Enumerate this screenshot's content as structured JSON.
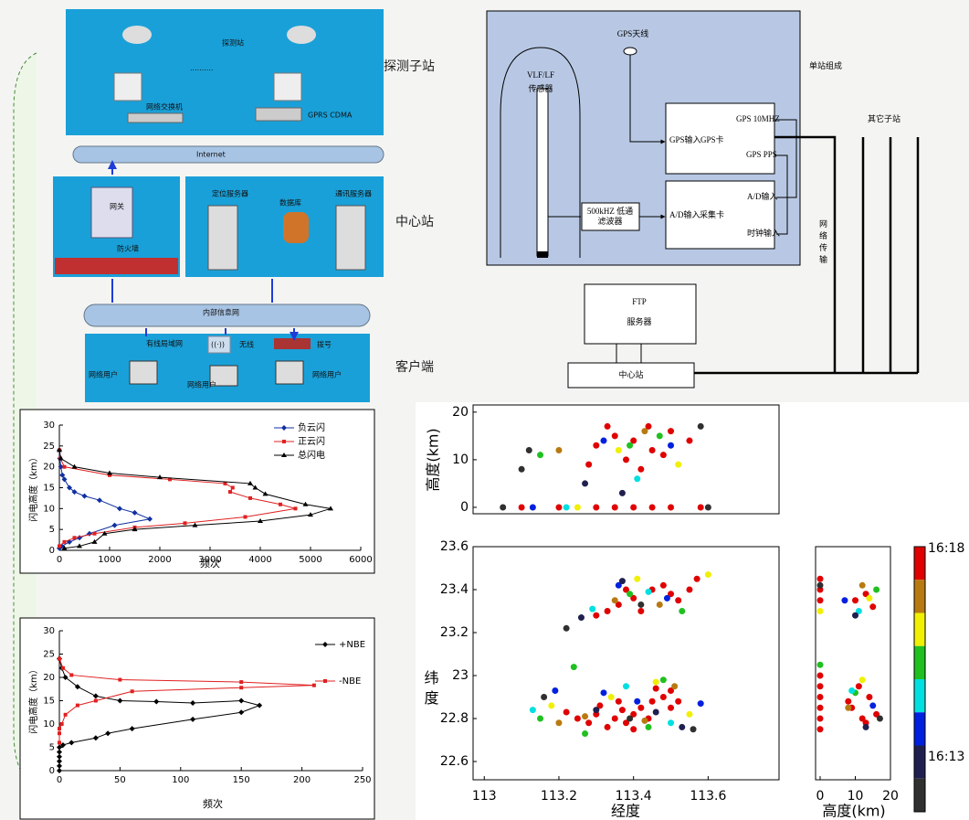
{
  "diagram": {
    "probe_station": "探测站",
    "dots": "··········",
    "switch": "网络交换机",
    "gprs": "GPRS CDMA",
    "internet": "Internet",
    "gateway": "网关",
    "firewall": "防火墙",
    "locate_server": "定位服务器",
    "database": "数据库",
    "comm_server": "通讯服务器",
    "intranet": "内部信息网",
    "wired_lan": "有线局域网",
    "wireless": "无线",
    "wifi_icon": "((·))",
    "dialup": "拨号",
    "user_1": "网络用户",
    "user_2": "网络用户",
    "user_3": "网络用户",
    "label_substation": "探测子站",
    "label_center": "中心站",
    "label_client": "客户端"
  },
  "system": {
    "sensor_1": "VLF/LF",
    "sensor_2": "传感器",
    "gps_antenna": "GPS天线",
    "gps_10mhz": "GPS 10MHZ",
    "gps_input": "GPS输入",
    "gps_card": "GPS卡",
    "gps_pps": "GPS PPS",
    "ad_input_1": "A/D输入",
    "filter_1": "500kHZ 低通",
    "filter_2": "滤波器",
    "ad_input_2": "A/D输入",
    "acq_card": "采集卡",
    "clock_input": "时钟输入",
    "single_station": "单站组成",
    "other_stations": "其它子站",
    "network": "网络传输",
    "ftp_1": "FTP",
    "ftp_2": "服务器",
    "center": "中心站"
  },
  "colorbar": {
    "colors": [
      "#e00000",
      "#b87a10",
      "#f0f000",
      "#20c020",
      "#00e0e0",
      "#0020e0",
      "#202050",
      "#303030"
    ],
    "ticks": [
      "16:18",
      "16:13"
    ]
  },
  "chart_data": [
    {
      "type": "line",
      "xlabel": "频次",
      "ylabel": "闪电高度（km）",
      "xlim": [
        0,
        6000
      ],
      "ylim": [
        0,
        30
      ],
      "xticks": [
        0,
        1000,
        2000,
        3000,
        4000,
        5000,
        6000
      ],
      "yticks": [
        0,
        5,
        10,
        15,
        20,
        25,
        30
      ],
      "series": [
        {
          "name": "负云闪",
          "color": "#1030a0",
          "marker": "diamond",
          "x": [
            0,
            10,
            30,
            60,
            100,
            200,
            300,
            500,
            800,
            1200,
            1500,
            1800,
            1100,
            600,
            400,
            200,
            50,
            0
          ],
          "y": [
            24,
            22,
            20,
            18,
            17,
            15,
            14,
            13,
            12,
            10,
            9,
            7.5,
            6,
            4,
            3,
            2,
            1,
            0.5
          ]
        },
        {
          "name": "正云闪",
          "color": "#e02020",
          "marker": "square",
          "x": [
            0,
            20,
            100,
            1000,
            2200,
            3300,
            3450,
            3400,
            3800,
            4400,
            4700,
            3700,
            2500,
            1500,
            700,
            300,
            100,
            0
          ],
          "y": [
            24,
            22,
            20,
            18,
            17,
            16,
            15,
            14,
            12.5,
            11,
            10,
            8,
            6.5,
            5.5,
            4,
            3,
            2,
            1
          ]
        },
        {
          "name": "总闪电",
          "color": "#000000",
          "marker": "triangle",
          "x": [
            0,
            30,
            300,
            1000,
            2000,
            3800,
            3900,
            4100,
            4900,
            5400,
            5000,
            4000,
            2700,
            1500,
            900,
            700,
            400,
            100
          ],
          "y": [
            24,
            22,
            20,
            18.5,
            17.5,
            16,
            15,
            13.5,
            11,
            10,
            8.5,
            7,
            6,
            5,
            4,
            2,
            1,
            0.5
          ]
        }
      ]
    },
    {
      "type": "line",
      "xlabel": "频次",
      "ylabel": "闪电高度（km）",
      "xlim": [
        0,
        250
      ],
      "ylim": [
        0,
        30
      ],
      "xticks": [
        0,
        50,
        100,
        150,
        200,
        250
      ],
      "yticks": [
        0,
        5,
        10,
        15,
        20,
        25,
        30
      ],
      "series": [
        {
          "name": "+NBE",
          "color": "#000000",
          "marker": "diamond",
          "x": [
            0,
            2,
            5,
            15,
            30,
            50,
            80,
            110,
            150,
            165,
            150,
            110,
            60,
            40,
            30,
            10,
            3,
            0,
            0,
            0,
            0,
            0,
            0
          ],
          "y": [
            24,
            22,
            20,
            18,
            16,
            15,
            14.8,
            14.5,
            15,
            14,
            12.5,
            11,
            9,
            8,
            7,
            6,
            5.5,
            5,
            4,
            3,
            2,
            1,
            0
          ]
        },
        {
          "name": "-NBE",
          "color": "#e02020",
          "marker": "square",
          "x": [
            0,
            3,
            10,
            50,
            150,
            210,
            150,
            60,
            30,
            15,
            5,
            2,
            0,
            0,
            0
          ],
          "y": [
            24,
            22,
            20.5,
            19.5,
            19,
            18.3,
            17.8,
            17,
            15,
            14,
            12,
            10,
            9,
            8,
            6
          ]
        }
      ]
    },
    {
      "type": "scatter",
      "ylabel": "高度(km)",
      "xlim": [
        112.97,
        113.79
      ],
      "ylim": [
        -1.35,
        21.5
      ],
      "yticks": [
        0,
        10,
        20
      ],
      "series": [
        {
          "color": "#e00000",
          "x": [
            113.35,
            113.4,
            113.45,
            113.3,
            113.5,
            113.38,
            113.42,
            113.48,
            113.33,
            113.55,
            113.28,
            113.44,
            113.1,
            113.2,
            113.3,
            113.4,
            113.5,
            113.58,
            113.35,
            113.45
          ],
          "y": [
            15,
            14,
            12,
            13,
            16,
            10,
            8,
            11,
            17,
            14,
            9,
            17,
            0,
            0,
            0,
            0,
            0,
            0,
            0,
            0
          ]
        },
        {
          "color": "#b87a10",
          "x": [
            113.43,
            113.2
          ],
          "y": [
            16,
            12
          ]
        },
        {
          "color": "#f0f000",
          "x": [
            113.25,
            113.36,
            113.52
          ],
          "y": [
            0,
            12,
            9
          ]
        },
        {
          "color": "#20c020",
          "x": [
            113.15,
            113.39,
            113.47
          ],
          "y": [
            11,
            13,
            15
          ]
        },
        {
          "color": "#00e0e0",
          "x": [
            113.22,
            113.41
          ],
          "y": [
            0,
            6
          ]
        },
        {
          "color": "#0020e0",
          "x": [
            113.32,
            113.5,
            113.13
          ],
          "y": [
            14,
            13,
            0
          ]
        },
        {
          "color": "#202050",
          "x": [
            113.27,
            113.37
          ],
          "y": [
            5,
            3
          ]
        },
        {
          "color": "#303030",
          "x": [
            113.12,
            113.58,
            113.05,
            113.1,
            113.6
          ],
          "y": [
            12,
            17,
            0,
            8,
            0
          ]
        }
      ]
    },
    {
      "type": "scatter",
      "xlabel": "经度",
      "ylabel": "纬度",
      "xlim": [
        112.97,
        113.79
      ],
      "ylim": [
        22.515,
        23.6
      ],
      "xticks": [
        113,
        113.2,
        113.4,
        113.6
      ],
      "yticks": [
        22.6,
        22.8,
        23,
        23.2,
        23.4,
        23.6
      ],
      "series": [
        {
          "color": "#e00000",
          "x": [
            113.45,
            113.5,
            113.52,
            113.48,
            113.4,
            113.36,
            113.33,
            113.55,
            113.42,
            113.38,
            113.3,
            113.57,
            113.3,
            113.35,
            113.38,
            113.4,
            113.42,
            113.45,
            113.48,
            113.5,
            113.33,
            113.28,
            113.25,
            113.37,
            113.44,
            113.52,
            113.22,
            113.36,
            113.46,
            113.31,
            113.4,
            113.5
          ],
          "y": [
            23.4,
            23.38,
            23.35,
            23.42,
            23.36,
            23.33,
            23.3,
            23.4,
            23.3,
            23.4,
            23.28,
            23.45,
            22.82,
            22.8,
            22.78,
            22.82,
            22.85,
            22.88,
            22.9,
            22.93,
            22.76,
            22.78,
            22.8,
            22.84,
            22.8,
            22.88,
            22.83,
            22.88,
            22.94,
            22.86,
            22.75,
            22.85
          ]
        },
        {
          "color": "#b87a10",
          "x": [
            113.35,
            113.47,
            113.27,
            113.43,
            113.51,
            113.2
          ],
          "y": [
            23.35,
            23.33,
            22.81,
            22.79,
            22.95,
            22.78
          ]
        },
        {
          "color": "#f0f000",
          "x": [
            113.41,
            113.6,
            113.46,
            113.34,
            113.55,
            113.18
          ],
          "y": [
            23.45,
            23.47,
            22.97,
            22.9,
            22.82,
            22.86
          ]
        },
        {
          "color": "#20c020",
          "x": [
            113.39,
            113.53,
            113.27,
            113.48,
            113.15,
            113.24,
            113.44
          ],
          "y": [
            23.38,
            23.3,
            22.73,
            22.98,
            22.8,
            23.04,
            22.76
          ]
        },
        {
          "color": "#00e0e0",
          "x": [
            113.44,
            113.29,
            113.38,
            113.5,
            113.13
          ],
          "y": [
            23.39,
            23.31,
            22.95,
            22.78,
            22.84
          ]
        },
        {
          "color": "#0020e0",
          "x": [
            113.36,
            113.49,
            113.32,
            113.41,
            113.19,
            113.58
          ],
          "y": [
            23.42,
            23.36,
            22.92,
            22.88,
            22.93,
            22.87
          ]
        },
        {
          "color": "#202050",
          "x": [
            113.26,
            113.37,
            113.3,
            113.46,
            113.53
          ],
          "y": [
            23.27,
            23.44,
            22.84,
            22.83,
            22.76
          ]
        },
        {
          "color": "#303030",
          "x": [
            113.22,
            113.42,
            113.16,
            113.39,
            113.56
          ],
          "y": [
            23.22,
            23.33,
            22.9,
            22.8,
            22.75
          ]
        }
      ]
    },
    {
      "type": "scatter",
      "xlabel": "高度(km)",
      "xlim": [
        -1.3,
        20
      ],
      "ylim": [
        22.515,
        23.6
      ],
      "xticks": [
        0,
        10,
        20
      ],
      "series": [
        {
          "color": "#e00000",
          "x": [
            0,
            0,
            0,
            0,
            0,
            0,
            0,
            0,
            0,
            10,
            13,
            15,
            9,
            12,
            14,
            11,
            16,
            8,
            13
          ],
          "y": [
            23.35,
            23.4,
            23.45,
            22.8,
            22.85,
            22.9,
            22.95,
            23.0,
            22.75,
            23.35,
            23.38,
            23.32,
            22.85,
            22.8,
            22.9,
            22.95,
            22.82,
            22.88,
            22.78
          ]
        },
        {
          "color": "#b87a10",
          "x": [
            12,
            8
          ],
          "y": [
            23.42,
            22.85
          ]
        },
        {
          "color": "#f0f000",
          "x": [
            0,
            12,
            14
          ],
          "y": [
            23.3,
            22.98,
            23.36
          ]
        },
        {
          "color": "#20c020",
          "x": [
            0,
            10,
            16
          ],
          "y": [
            23.05,
            22.92,
            23.4
          ]
        },
        {
          "color": "#00e0e0",
          "x": [
            9,
            11
          ],
          "y": [
            22.93,
            23.3
          ]
        },
        {
          "color": "#0020e0",
          "x": [
            15,
            7
          ],
          "y": [
            22.86,
            23.35
          ]
        },
        {
          "color": "#202050",
          "x": [
            13,
            10
          ],
          "y": [
            22.76,
            23.28
          ]
        },
        {
          "color": "#303030",
          "x": [
            0,
            17
          ],
          "y": [
            23.42,
            22.8
          ]
        }
      ]
    }
  ]
}
